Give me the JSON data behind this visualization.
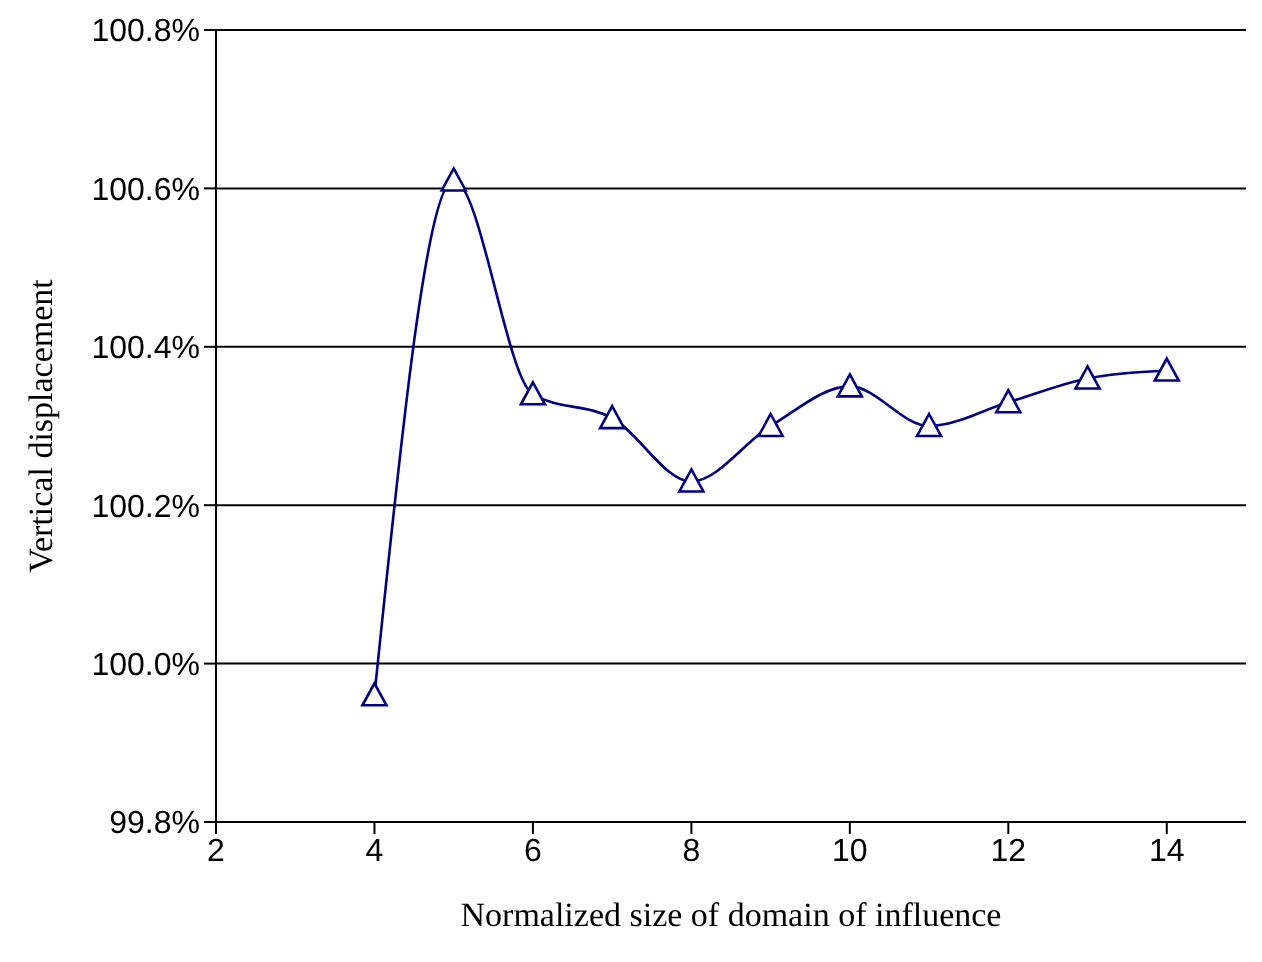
{
  "chart_data": {
    "type": "line",
    "xlabel": "Normalized size of domain of influence",
    "ylabel": "Vertical displacement",
    "x": [
      4,
      5,
      6,
      7,
      8,
      9,
      10,
      11,
      12,
      13,
      14
    ],
    "series": [
      {
        "color": "#000080",
        "values": [
          99.96,
          100.61,
          100.34,
          100.31,
          100.23,
          100.3,
          100.35,
          100.3,
          100.33,
          100.36,
          100.37
        ]
      }
    ],
    "xlim": [
      2,
      15
    ],
    "xticks": [
      2,
      4,
      6,
      8,
      10,
      12,
      14
    ],
    "ylim": [
      99.8,
      100.8
    ],
    "yticks": [
      {
        "value": 99.8,
        "label": "99.8%"
      },
      {
        "value": 100.0,
        "label": "100.0%"
      },
      {
        "value": 100.2,
        "label": "100.2%"
      },
      {
        "value": 100.4,
        "label": "100.4%"
      },
      {
        "value": 100.6,
        "label": "100.6%"
      },
      {
        "value": 100.8,
        "label": "100.8%"
      }
    ],
    "grid": "y",
    "marker": "triangle",
    "line_style": "solid"
  }
}
